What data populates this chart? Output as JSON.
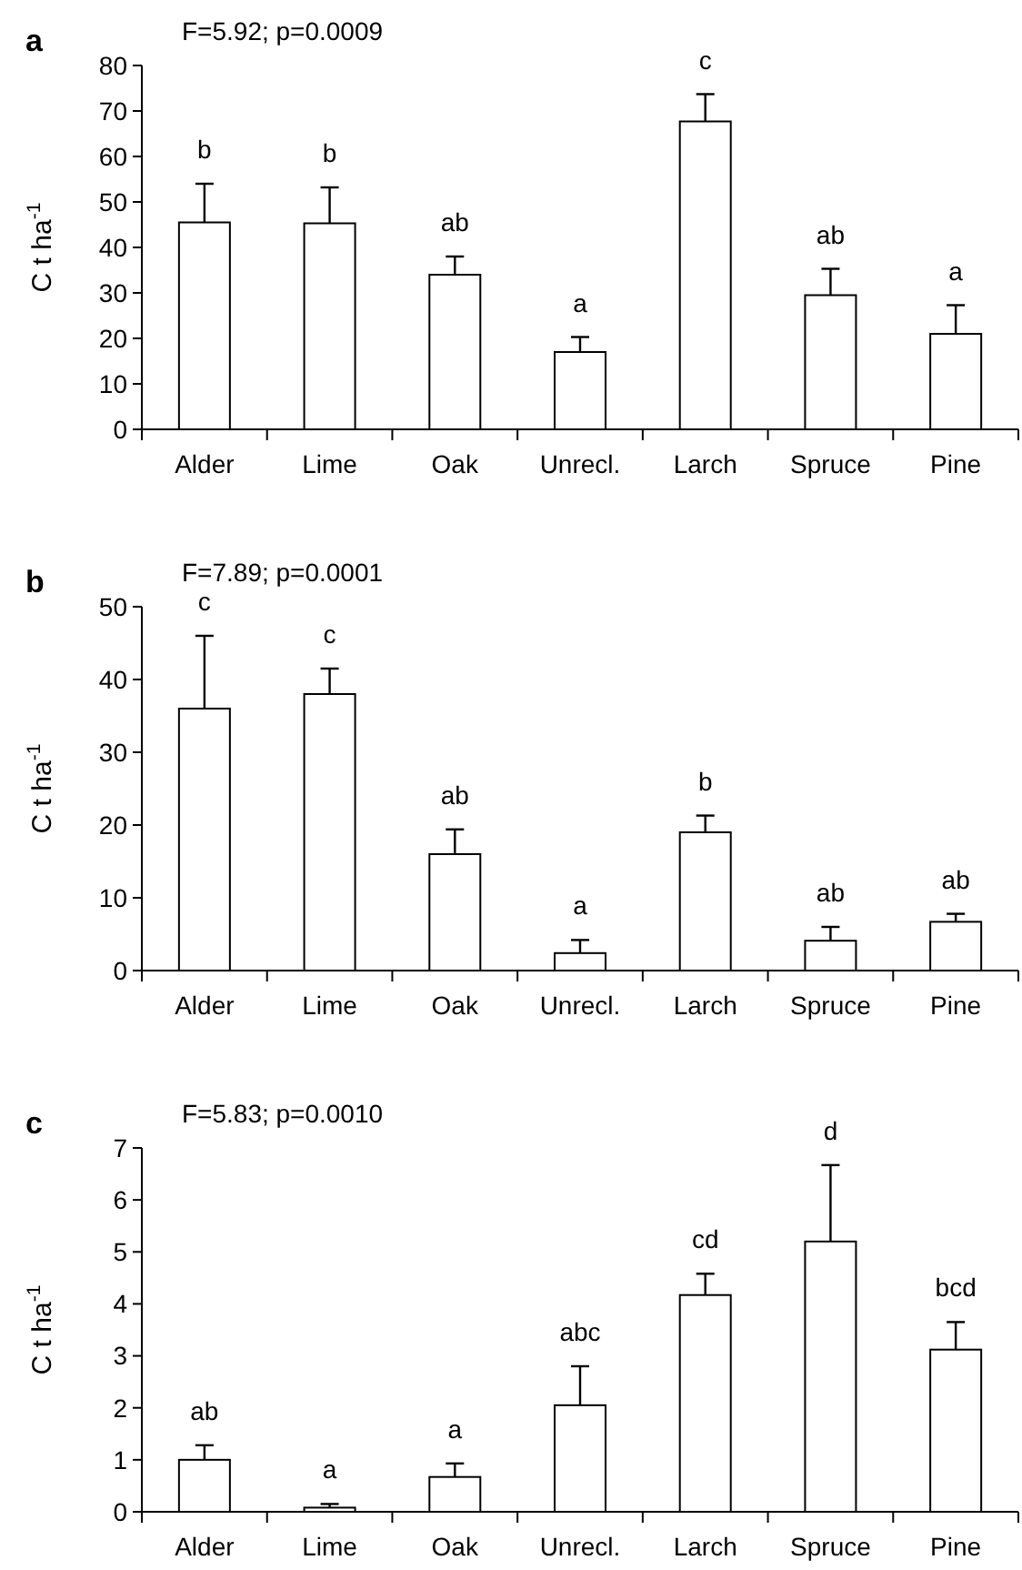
{
  "chart_data": [
    {
      "type": "bar",
      "title": "F=5.92; p=0.0009",
      "ylabel": "C  t ha$^{-1}$",
      "categories": [
        "Alder",
        "Lime",
        "Oak",
        "Unrecl.",
        "Larch",
        "Spruce",
        "Pine"
      ],
      "values": [
        45.5,
        45.3,
        34,
        17,
        67.7,
        29.5,
        21
      ],
      "errors": [
        [
          45.5,
          54
        ],
        [
          45.3,
          53.2
        ],
        [
          34,
          38
        ],
        [
          17,
          20.3
        ],
        [
          67.7,
          73.7
        ],
        [
          29.5,
          35.3
        ],
        [
          21,
          27.3
        ]
      ],
      "color": "#ffffff",
      "ylim": [
        0,
        80
      ],
      "yticks": [
        0,
        10,
        20,
        30,
        40,
        50,
        60,
        70,
        80
      ],
      "annotations": [
        "a",
        {
          "text": "b",
          "x": "Alder",
          "y": 54
        },
        {
          "text": "b",
          "x": "Lime",
          "y": 53.2
        },
        {
          "text": "ab",
          "x": "Oak",
          "y": 38
        },
        {
          "text": "a",
          "x": "Unrecl.",
          "y": 20.3
        },
        {
          "text": "c",
          "x": "Larch",
          "y": 73.7
        },
        {
          "text": "ab",
          "x": "Spruce",
          "y": 35.3
        },
        {
          "text": "a",
          "x": "Pine",
          "y": 27.3
        }
      ]
    },
    {
      "type": "bar",
      "title": "F=7.89; p=0.0001",
      "ylabel": "C  t ha$^{-1}$",
      "categories": [
        "Alder",
        "Lime",
        "Oak",
        "Unrecl.",
        "Larch",
        "Spruce",
        "Pine"
      ],
      "values": [
        36,
        38,
        16,
        2.4,
        19,
        4.1,
        6.7
      ],
      "errors": [
        [
          36,
          46
        ],
        [
          38,
          41.5
        ],
        [
          16,
          19.4
        ],
        [
          2.4,
          4.2
        ],
        [
          19,
          21.3
        ],
        [
          4.1,
          6
        ],
        [
          6.7,
          7.8
        ]
      ],
      "color": "#ffffff",
      "ylim": [
        0,
        50
      ],
      "yticks": [
        0,
        10,
        20,
        30,
        40,
        50
      ],
      "annotations": [
        "b",
        {
          "text": "c",
          "x": "Alder",
          "y": 46
        },
        {
          "text": "c",
          "x": "Lime",
          "y": 41.5
        },
        {
          "text": "ab",
          "x": "Oak",
          "y": 19.4
        },
        {
          "text": "a",
          "x": "Unrecl.",
          "y": 4.2
        },
        {
          "text": "b",
          "x": "Larch",
          "y": 21.3
        },
        {
          "text": "ab",
          "x": "Spruce",
          "y": 6
        },
        {
          "text": "ab",
          "x": "Pine",
          "y": 7.8
        }
      ]
    },
    {
      "type": "bar",
      "title": "F=5.83; p=0.0010",
      "ylabel": "C  t ha$^{-1}$",
      "categories": [
        "Alder",
        "Lime",
        "Oak",
        "Unrecl.",
        "Larch",
        "Spruce",
        "Pine"
      ],
      "values": [
        1.0,
        0.08,
        0.67,
        2.05,
        4.17,
        5.2,
        3.12
      ],
      "errors": [
        [
          1.0,
          1.28
        ],
        [
          0.08,
          0.15
        ],
        [
          0.67,
          0.93
        ],
        [
          2.05,
          2.8
        ],
        [
          4.17,
          4.58
        ],
        [
          5.2,
          6.67
        ],
        [
          3.12,
          3.65
        ]
      ],
      "color": "#ffffff",
      "ylim": [
        0,
        7
      ],
      "yticks": [
        0,
        1,
        2,
        3,
        4,
        5,
        6,
        7
      ],
      "annotations": [
        "c",
        {
          "text": "ab",
          "x": "Alder",
          "y": 1.28
        },
        {
          "text": "a",
          "x": "Lime",
          "y": 0.15
        },
        {
          "text": "a",
          "x": "Oak",
          "y": 0.93
        },
        {
          "text": "abc",
          "x": "Unrecl.",
          "y": 2.8
        },
        {
          "text": "cd",
          "x": "Larch",
          "y": 4.58
        },
        {
          "text": "d",
          "x": "Spruce",
          "y": 6.67
        },
        {
          "text": "bcd",
          "x": "Pine",
          "y": 3.65
        }
      ]
    }
  ]
}
